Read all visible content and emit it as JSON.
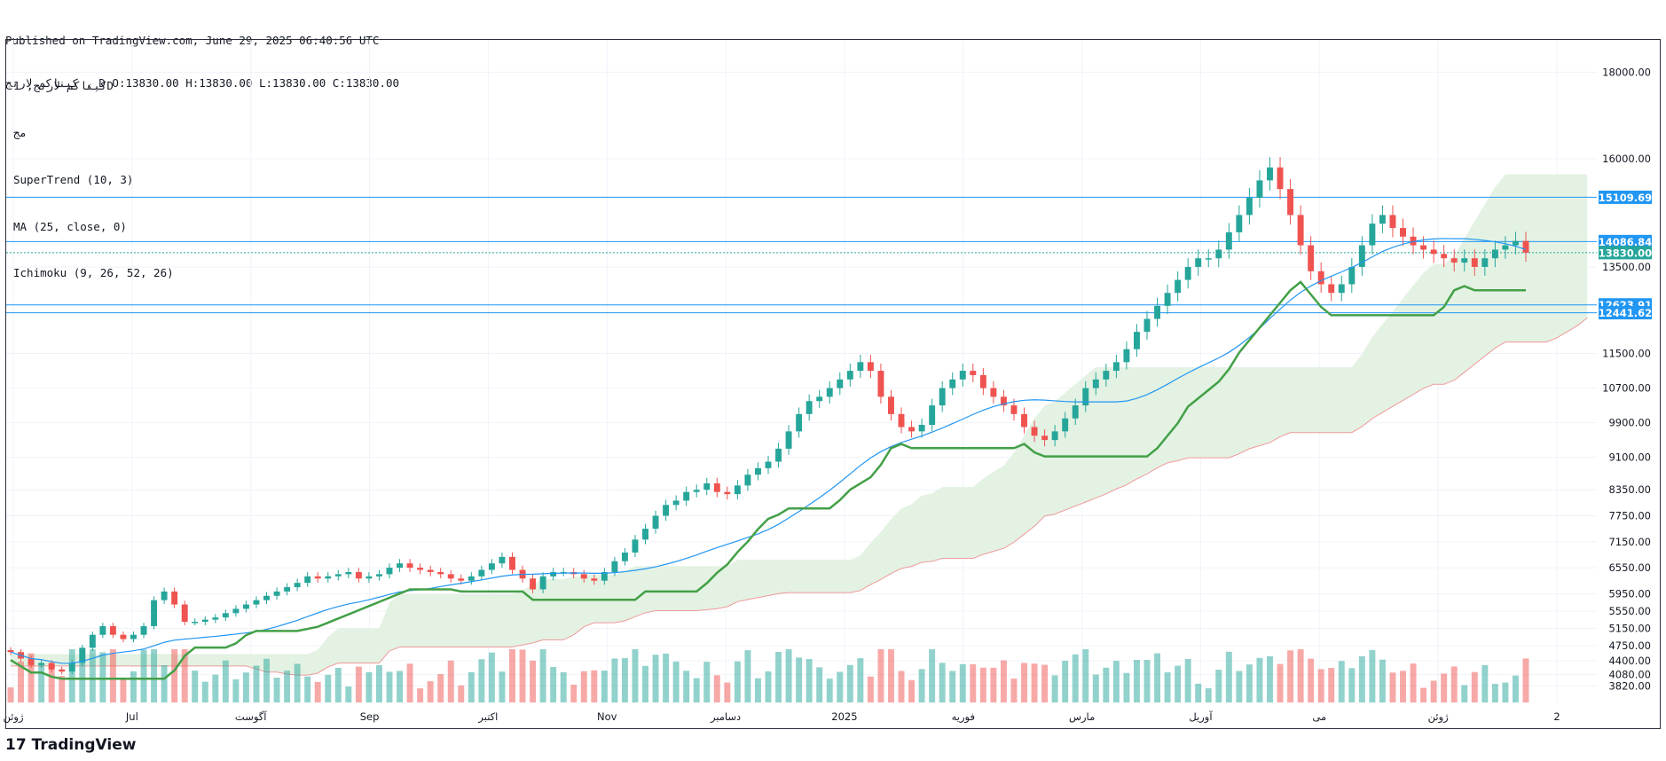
{
  "header": {
    "published": "Published on TradingView.com, June 29, 2025 06:40:56 UTC",
    "ohlc": "کیناکم لارنج , D O:13830.00 H:13830.00 L:13830.00 C:13830.00"
  },
  "legend": {
    "symbol": "کیناکم لارنج, 1D",
    "exchange": "مج",
    "supertrend": "SuperTrend (10, 3)",
    "ma": "MA (25, close, 0)",
    "ichimoku": "Ichimoku (9, 26, 52, 26)"
  },
  "footer": {
    "brand": "TradingView",
    "logo": "17"
  },
  "colors": {
    "up": "#26a69a",
    "down": "#ef5350",
    "ma": "#2196f3",
    "st_up": "#43a047",
    "st_down": "#a64d4d",
    "cloud_green": "#e3f2e3",
    "cloud_red": "#fde2e2",
    "hline": "#2196f3",
    "last": "#26a69a"
  },
  "chart_data": {
    "type": "candlestick",
    "title": "کیناکم لارنج, 1D",
    "x_labels": [
      "ژوئن",
      "Jul",
      "آگوست",
      "Sep",
      "اکتبر",
      "Nov",
      "دسامبر",
      "2025",
      "فوریه",
      "مارس",
      "آوریل",
      "می",
      "ژوئن",
      "2"
    ],
    "y_ticks": [
      18000,
      16000,
      13500,
      11500,
      10700,
      9900,
      9100,
      8350,
      7750,
      7150,
      6550,
      5950,
      5550,
      5150,
      4750,
      4400,
      4080,
      3820
    ],
    "ylim": [
      3600,
      18500
    ],
    "close_path": [
      4600,
      4450,
      4300,
      4350,
      4200,
      4150,
      4350,
      4700,
      5000,
      5200,
      5000,
      4900,
      5000,
      5200,
      5800,
      6000,
      5700,
      5300,
      5300,
      5350,
      5400,
      5500,
      5600,
      5700,
      5800,
      5900,
      6000,
      6100,
      6200,
      6350,
      6300,
      6350,
      6400,
      6450,
      6300,
      6350,
      6400,
      6550,
      6650,
      6550,
      6500,
      6450,
      6400,
      6300,
      6250,
      6350,
      6500,
      6650,
      6800,
      6500,
      6300,
      6050,
      6350,
      6450,
      6450,
      6400,
      6300,
      6250,
      6450,
      6700,
      6900,
      7200,
      7450,
      7750,
      8000,
      8100,
      8300,
      8350,
      8500,
      8300,
      8250,
      8450,
      8700,
      8850,
      9000,
      9300,
      9700,
      10100,
      10400,
      10500,
      10700,
      10900,
      11100,
      11300,
      11100,
      10500,
      10100,
      9800,
      9700,
      9850,
      10300,
      10700,
      10900,
      11100,
      11000,
      10700,
      10500,
      10300,
      10100,
      9800,
      9600,
      9500,
      9700,
      10000,
      10300,
      10700,
      10900,
      11100,
      11300,
      11600,
      12000,
      12300,
      12600,
      12900,
      13200,
      13500,
      13700,
      13700,
      13900,
      14300,
      14700,
      15100,
      15500,
      15800,
      15300,
      14700,
      14000,
      13400,
      13100,
      12900,
      13100,
      13500,
      14000,
      14500,
      14700,
      14400,
      14200,
      14000,
      13900,
      13800,
      13700,
      13600,
      13700,
      13500,
      13700,
      13900,
      14000,
      14100,
      13830
    ],
    "last_price": 13830.0,
    "horizontal_levels": [
      15109.69,
      14086.84,
      12623.91,
      12441.62
    ],
    "indicators": [
      "SuperTrend (10, 3)",
      "MA (25, close, 0)",
      "Ichimoku (9, 26, 52, 26)"
    ],
    "price_labels": [
      {
        "value": 15109.69,
        "text": "15109.69",
        "color": "#2196f3"
      },
      {
        "value": 14086.84,
        "text": "14086.84",
        "color": "#2196f3"
      },
      {
        "value": 13830.0,
        "text": "13830.00",
        "color": "#26a69a"
      },
      {
        "value": 12623.91,
        "text": "12623.91",
        "color": "#2196f3"
      },
      {
        "value": 12441.62,
        "text": "12441.62",
        "color": "#2196f3"
      }
    ]
  }
}
